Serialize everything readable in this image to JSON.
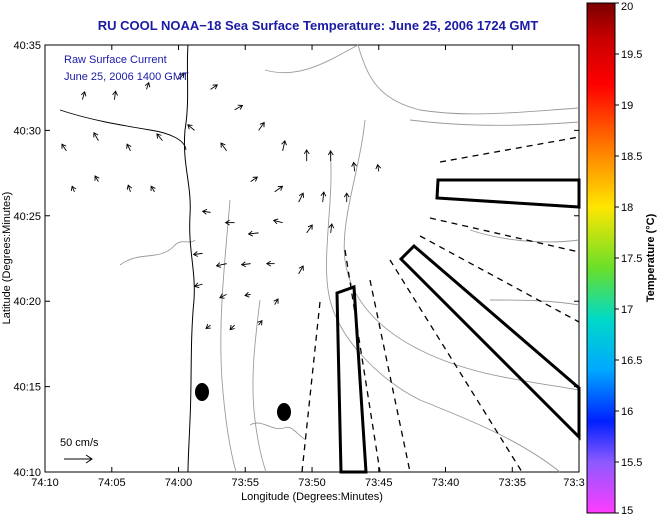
{
  "chart_data": {
    "type": "vector-field-map",
    "title": "RU COOL   NOAA−18  Sea Surface Temperature:  June 25, 2006 1724 GMT",
    "xlabel": "Longitude (Degrees:Minutes)",
    "ylabel": "Latitude (Degrees:Minutes)",
    "x_ticks": [
      "74:10",
      "74:05",
      "74:00",
      "73:55",
      "73:50",
      "73:45",
      "73:40",
      "73:35",
      "73:3"
    ],
    "x_tick_values": [
      -74.1667,
      -74.0833,
      -74.0,
      -73.9167,
      -73.8333,
      -73.75,
      -73.6667,
      -73.5833,
      -73.5
    ],
    "y_ticks": [
      "40:35",
      "40:30",
      "40:25",
      "40:20",
      "40:15",
      "40:10"
    ],
    "y_tick_values": [
      40.5833,
      40.5,
      40.4167,
      40.3333,
      40.25,
      40.1667
    ],
    "xlim": [
      -74.1667,
      -73.5
    ],
    "ylim": [
      40.1667,
      40.5833
    ],
    "inset_lines": [
      "Raw Surface Current",
      "June 25, 2006 1400 GMT"
    ],
    "scale_label": "50 cm/s",
    "colorbar": {
      "label": "Temperature (°C)",
      "ticks": [
        "20",
        "19.5",
        "19",
        "18.5",
        "18",
        "17.5",
        "17",
        "16.5",
        "16",
        "15.5",
        "15"
      ],
      "range": [
        15,
        20
      ]
    },
    "vectors": [
      {
        "lon": -74.12,
        "lat": 40.53,
        "u": 4,
        "v": 14
      },
      {
        "lon": -74.08,
        "lat": 40.53,
        "u": 2,
        "v": 15
      },
      {
        "lon": -74.04,
        "lat": 40.54,
        "u": 4,
        "v": 12
      },
      {
        "lon": -74.0,
        "lat": 40.55,
        "u": 10,
        "v": 10
      },
      {
        "lon": -73.96,
        "lat": 40.54,
        "u": 12,
        "v": 8
      },
      {
        "lon": -73.93,
        "lat": 40.52,
        "u": 14,
        "v": 8
      },
      {
        "lon": -73.9,
        "lat": 40.5,
        "u": 10,
        "v": 14
      },
      {
        "lon": -73.87,
        "lat": 40.48,
        "u": 4,
        "v": 18
      },
      {
        "lon": -73.84,
        "lat": 40.47,
        "u": 0,
        "v": 20
      },
      {
        "lon": -73.81,
        "lat": 40.47,
        "u": 0,
        "v": 18
      },
      {
        "lon": -73.78,
        "lat": 40.46,
        "u": -2,
        "v": 16
      },
      {
        "lon": -73.75,
        "lat": 40.46,
        "u": -2,
        "v": 12
      },
      {
        "lon": -74.14,
        "lat": 40.48,
        "u": -8,
        "v": 12
      },
      {
        "lon": -74.1,
        "lat": 40.49,
        "u": -8,
        "v": 14
      },
      {
        "lon": -74.06,
        "lat": 40.48,
        "u": -6,
        "v": 12
      },
      {
        "lon": -74.02,
        "lat": 40.49,
        "u": -10,
        "v": 12
      },
      {
        "lon": -73.98,
        "lat": 40.5,
        "u": -12,
        "v": 10
      },
      {
        "lon": -73.94,
        "lat": 40.48,
        "u": -10,
        "v": 14
      },
      {
        "lon": -73.91,
        "lat": 40.45,
        "u": 12,
        "v": 8
      },
      {
        "lon": -73.88,
        "lat": 40.44,
        "u": 14,
        "v": 10
      },
      {
        "lon": -73.85,
        "lat": 40.43,
        "u": 8,
        "v": 16
      },
      {
        "lon": -73.82,
        "lat": 40.43,
        "u": 2,
        "v": 18
      },
      {
        "lon": -73.79,
        "lat": 40.43,
        "u": 0,
        "v": 16
      },
      {
        "lon": -74.13,
        "lat": 40.44,
        "u": -4,
        "v": 10
      },
      {
        "lon": -74.1,
        "lat": 40.45,
        "u": -6,
        "v": 10
      },
      {
        "lon": -74.06,
        "lat": 40.44,
        "u": -4,
        "v": 12
      },
      {
        "lon": -74.03,
        "lat": 40.44,
        "u": -6,
        "v": 10
      },
      {
        "lon": -73.96,
        "lat": 40.42,
        "u": -14,
        "v": 2
      },
      {
        "lon": -73.93,
        "lat": 40.41,
        "u": -16,
        "v": 0
      },
      {
        "lon": -73.9,
        "lat": 40.4,
        "u": -18,
        "v": -2
      },
      {
        "lon": -73.87,
        "lat": 40.41,
        "u": -16,
        "v": 4
      },
      {
        "lon": -73.84,
        "lat": 40.4,
        "u": 10,
        "v": 14
      },
      {
        "lon": -73.81,
        "lat": 40.4,
        "u": 2,
        "v": 16
      },
      {
        "lon": -73.97,
        "lat": 40.38,
        "u": -16,
        "v": -2
      },
      {
        "lon": -73.94,
        "lat": 40.37,
        "u": -18,
        "v": -4
      },
      {
        "lon": -73.91,
        "lat": 40.37,
        "u": -16,
        "v": -2
      },
      {
        "lon": -73.88,
        "lat": 40.37,
        "u": -14,
        "v": 0
      },
      {
        "lon": -73.85,
        "lat": 40.36,
        "u": 8,
        "v": 14
      },
      {
        "lon": -73.97,
        "lat": 40.35,
        "u": -14,
        "v": -4
      },
      {
        "lon": -73.94,
        "lat": 40.34,
        "u": -12,
        "v": -6
      },
      {
        "lon": -73.91,
        "lat": 40.34,
        "u": -10,
        "v": -2
      },
      {
        "lon": -73.88,
        "lat": 40.33,
        "u": 6,
        "v": 10
      },
      {
        "lon": -73.96,
        "lat": 40.31,
        "u": -8,
        "v": -6
      },
      {
        "lon": -73.93,
        "lat": 40.31,
        "u": -8,
        "v": -8
      },
      {
        "lon": -73.9,
        "lat": 40.31,
        "u": 6,
        "v": 8
      }
    ]
  }
}
